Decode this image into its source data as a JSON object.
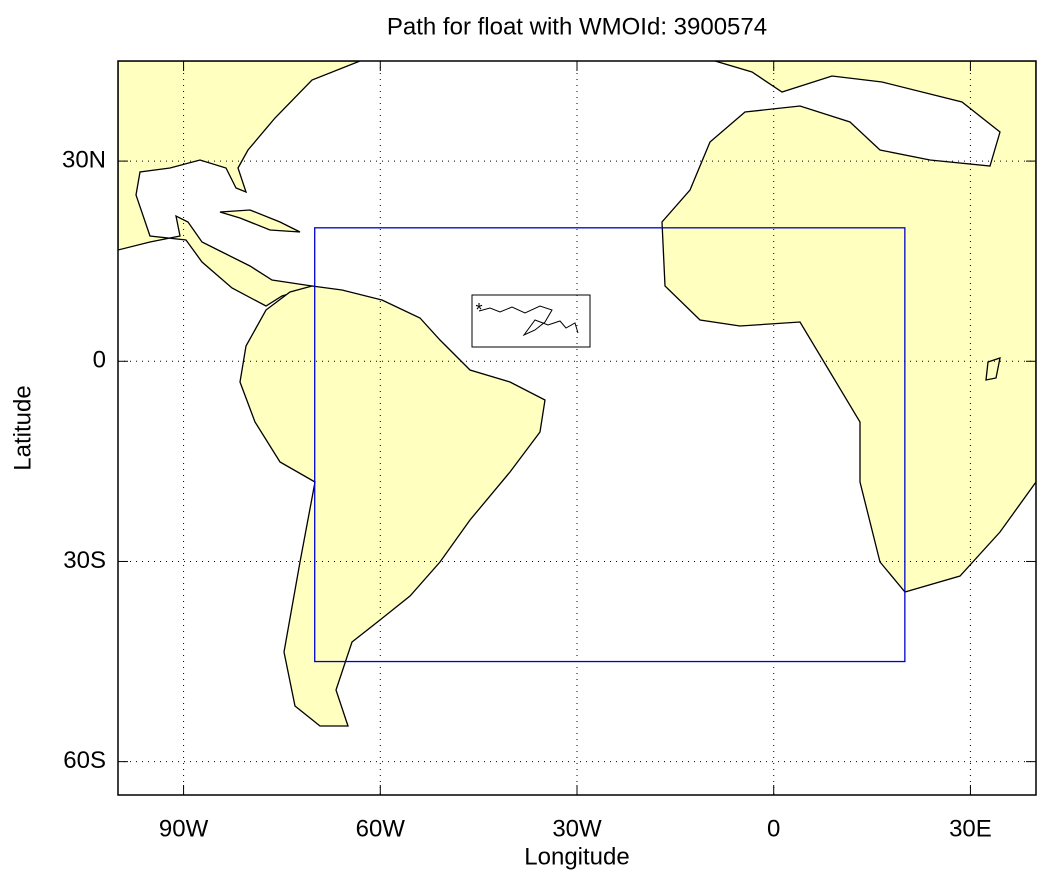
{
  "chart_data": {
    "type": "map",
    "title": "Path for float with WMOId: 3900574",
    "xlabel": "Longitude",
    "ylabel": "Latitude",
    "xlim": [
      -100,
      40
    ],
    "ylim": [
      -65,
      45
    ],
    "xticks": [
      {
        "value": -90,
        "label": "90W"
      },
      {
        "value": -60,
        "label": "60W"
      },
      {
        "value": -30,
        "label": "30W"
      },
      0,
      {
        "value": 30,
        "label": "30E"
      }
    ],
    "yticks": [
      {
        "value": 30,
        "label": "30N"
      },
      0,
      {
        "value": -30,
        "label": "30S"
      },
      {
        "value": -60,
        "label": "60S"
      }
    ],
    "grid": true,
    "region": {
      "lon": [
        -70,
        20
      ],
      "lat": [
        -45,
        20
      ],
      "color": "#0000cc"
    },
    "land_color": "#ffffc0"
  }
}
